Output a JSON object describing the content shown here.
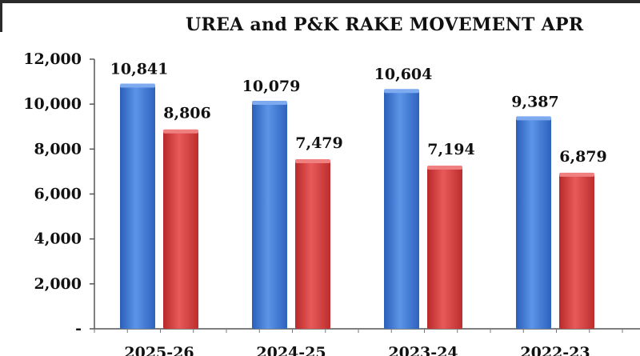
{
  "title": "UREA and P&K RAKE MOVEMENT APR",
  "colors": {
    "series1": "#3f7ad6",
    "series2": "#d33a3a"
  },
  "chart_data": {
    "type": "bar",
    "title": "UREA and P&K RAKE MOVEMENT APR",
    "categories": [
      "2025-26",
      "2024-25",
      "2023-24",
      "2022-23"
    ],
    "series": [
      {
        "values": [
          10841,
          10079,
          10604,
          9387
        ],
        "labels": [
          "10,841",
          "10,079",
          "10,604",
          "9,387"
        ]
      },
      {
        "values": [
          8806,
          7479,
          7194,
          6879
        ],
        "labels": [
          "8,806",
          "7,479",
          "7,194",
          "6,879"
        ]
      }
    ],
    "yticks": [
      "-",
      "2,000",
      "4,000",
      "6,000",
      "8,000",
      "10,000",
      "12,000"
    ],
    "ylim": [
      0,
      12000
    ],
    "xlabel": "",
    "ylabel": "",
    "grid": false,
    "legend": "none"
  }
}
